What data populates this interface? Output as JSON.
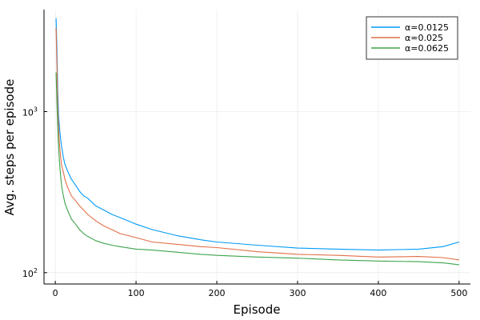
{
  "chart_data": {
    "type": "line",
    "title": "",
    "xlabel": "Episode",
    "ylabel": "Avg. steps per episode",
    "xlim": [
      -14,
      514
    ],
    "ylim": [
      85,
      4300
    ],
    "y_scale": "log10",
    "x_ticks": [
      0,
      100,
      200,
      300,
      400,
      500
    ],
    "x_tick_labels": [
      "0",
      "100",
      "200",
      "300",
      "400",
      "500"
    ],
    "y_ticks": [
      100,
      1000
    ],
    "y_tick_labels": [
      "10²",
      "10³"
    ],
    "y_tick_bases": [
      "10",
      "10"
    ],
    "y_tick_exps": [
      "2",
      "3"
    ],
    "grid": true,
    "legend_position": "top-right",
    "series": [
      {
        "name": "α=0.0125",
        "color": "#009af9",
        "x": [
          1,
          2,
          3,
          4,
          5,
          6,
          7,
          8,
          10,
          12,
          15,
          20,
          25,
          30,
          35,
          40,
          50,
          60,
          70,
          80,
          100,
          120,
          150,
          180,
          200,
          250,
          300,
          350,
          400,
          450,
          480,
          500
        ],
        "y": [
          3800,
          2400,
          1350,
          950,
          820,
          720,
          650,
          600,
          520,
          470,
          430,
          380,
          350,
          320,
          300,
          290,
          260,
          245,
          230,
          220,
          200,
          185,
          170,
          160,
          155,
          148,
          142,
          140,
          138,
          140,
          145,
          155
        ]
      },
      {
        "name": "α=0.025",
        "color": "#e26f46",
        "x": [
          1,
          2,
          3,
          4,
          5,
          6,
          7,
          8,
          10,
          12,
          15,
          20,
          25,
          30,
          35,
          40,
          50,
          60,
          70,
          80,
          100,
          120,
          150,
          180,
          200,
          250,
          300,
          350,
          400,
          450,
          480,
          500
        ],
        "y": [
          3300,
          1900,
          1050,
          800,
          640,
          560,
          500,
          460,
          420,
          380,
          340,
          300,
          280,
          260,
          245,
          230,
          210,
          195,
          185,
          175,
          165,
          155,
          150,
          145,
          143,
          135,
          130,
          128,
          125,
          126,
          124,
          120
        ]
      },
      {
        "name": "α=0.0625",
        "color": "#3da44d",
        "x": [
          1,
          2,
          3,
          4,
          5,
          6,
          7,
          8,
          10,
          12,
          15,
          20,
          25,
          30,
          35,
          40,
          50,
          60,
          70,
          80,
          100,
          120,
          150,
          180,
          200,
          250,
          300,
          350,
          400,
          450,
          480,
          500
        ],
        "y": [
          1750,
          1100,
          780,
          600,
          500,
          430,
          380,
          340,
          300,
          270,
          245,
          215,
          200,
          185,
          175,
          168,
          158,
          152,
          148,
          145,
          140,
          138,
          134,
          130,
          128,
          125,
          123,
          120,
          118,
          117,
          115,
          112
        ]
      }
    ]
  }
}
